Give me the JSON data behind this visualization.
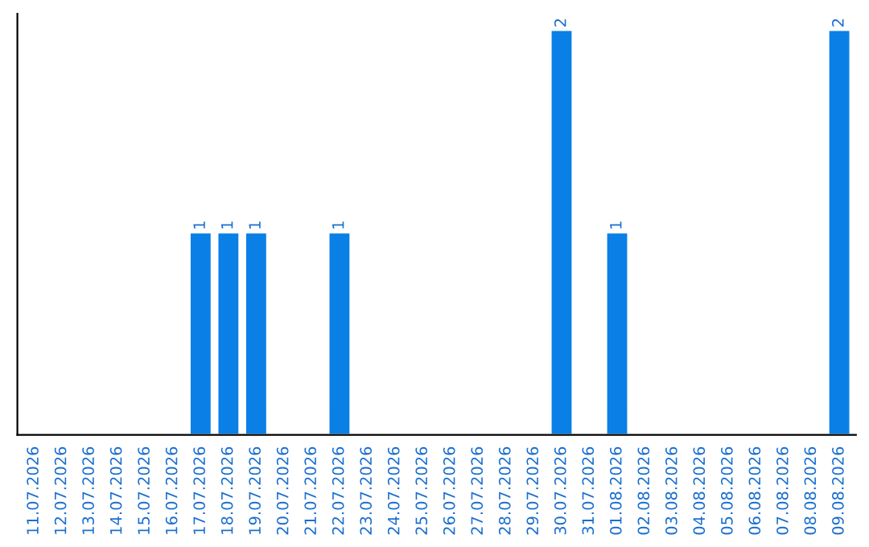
{
  "chart_data": {
    "type": "bar",
    "categories": [
      "11.07.2026",
      "12.07.2026",
      "13.07.2026",
      "14.07.2026",
      "15.07.2026",
      "16.07.2026",
      "17.07.2026",
      "18.07.2026",
      "19.07.2026",
      "20.07.2026",
      "21.07.2026",
      "22.07.2026",
      "23.07.2026",
      "24.07.2026",
      "25.07.2026",
      "26.07.2026",
      "27.07.2026",
      "28.07.2026",
      "29.07.2026",
      "30.07.2026",
      "31.07.2026",
      "01.08.2026",
      "02.08.2026",
      "03.08.2026",
      "04.08.2026",
      "05.08.2026",
      "06.08.2026",
      "07.08.2026",
      "08.08.2026",
      "09.08.2026"
    ],
    "values": [
      null,
      null,
      null,
      null,
      null,
      null,
      1,
      1,
      1,
      null,
      null,
      1,
      null,
      null,
      null,
      null,
      null,
      null,
      null,
      2,
      null,
      1,
      null,
      null,
      null,
      null,
      null,
      null,
      null,
      2
    ],
    "value_labels": [
      null,
      null,
      null,
      null,
      null,
      null,
      "1",
      "1",
      "1",
      null,
      null,
      "1",
      null,
      null,
      null,
      null,
      null,
      null,
      null,
      "2",
      null,
      "1",
      null,
      null,
      null,
      null,
      null,
      null,
      null,
      "2"
    ],
    "color": "#0a7fe6",
    "ylim": [
      0,
      2.08
    ],
    "tick_labels": "x",
    "grid": false,
    "legend": false
  }
}
